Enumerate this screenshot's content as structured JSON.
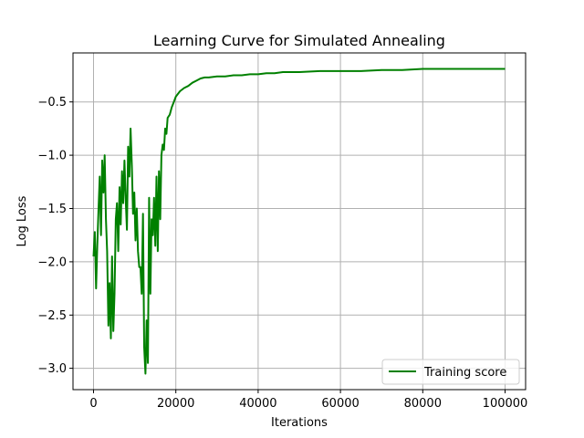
{
  "chart_data": {
    "type": "line",
    "title": "Learning Curve for Simulated Annealing",
    "xlabel": "Iterations",
    "ylabel": "Log Loss",
    "xlim": [
      -5000,
      105000
    ],
    "ylim": [
      -3.2,
      -0.04
    ],
    "grid": true,
    "legend_position": "lower right",
    "xticks": [
      0,
      20000,
      40000,
      60000,
      80000,
      100000
    ],
    "xtick_labels": [
      "0",
      "20000",
      "40000",
      "60000",
      "80000",
      "100000"
    ],
    "yticks": [
      -3.0,
      -2.5,
      -2.0,
      -1.5,
      -1.0,
      -0.5
    ],
    "ytick_labels": [
      "−3.0",
      "−2.5",
      "−2.0",
      "−1.5",
      "−1.0",
      "−0.5"
    ],
    "series": [
      {
        "name": "Training score",
        "color": "#008000",
        "x": [
          0,
          300,
          600,
          900,
          1200,
          1500,
          1800,
          2100,
          2400,
          2700,
          3000,
          3300,
          3600,
          3900,
          4200,
          4500,
          4800,
          5100,
          5400,
          5700,
          6000,
          6300,
          6600,
          6900,
          7200,
          7500,
          7800,
          8100,
          8400,
          8700,
          9000,
          9300,
          9600,
          9900,
          10200,
          10500,
          10800,
          11100,
          11400,
          11700,
          12000,
          12300,
          12600,
          12900,
          13200,
          13500,
          13800,
          14100,
          14400,
          14700,
          15000,
          15300,
          15600,
          15900,
          16200,
          16500,
          16800,
          17100,
          17400,
          17700,
          18000,
          18500,
          19000,
          19500,
          20000,
          21000,
          22000,
          23000,
          24000,
          25000,
          26000,
          27000,
          28000,
          30000,
          32000,
          34000,
          36000,
          38000,
          40000,
          42000,
          44000,
          46000,
          48000,
          50000,
          55000,
          60000,
          65000,
          70000,
          75000,
          80000,
          85000,
          90000,
          95000,
          100000
        ],
        "values": [
          -1.95,
          -1.72,
          -2.25,
          -1.85,
          -1.5,
          -1.2,
          -1.75,
          -1.05,
          -1.35,
          -1.0,
          -1.6,
          -1.9,
          -2.6,
          -2.2,
          -2.72,
          -1.95,
          -2.65,
          -2.3,
          -1.6,
          -1.45,
          -1.9,
          -1.3,
          -1.65,
          -1.15,
          -1.45,
          -1.05,
          -1.4,
          -1.7,
          -0.92,
          -1.2,
          -0.75,
          -1.1,
          -1.55,
          -1.35,
          -1.8,
          -1.5,
          -1.9,
          -2.05,
          -2.05,
          -2.3,
          -1.55,
          -2.8,
          -3.05,
          -2.55,
          -2.95,
          -1.4,
          -2.3,
          -1.6,
          -1.75,
          -1.4,
          -1.85,
          -1.2,
          -1.9,
          -1.15,
          -1.6,
          -1.0,
          -0.9,
          -0.95,
          -0.75,
          -0.8,
          -0.65,
          -0.62,
          -0.55,
          -0.5,
          -0.45,
          -0.4,
          -0.37,
          -0.35,
          -0.32,
          -0.3,
          -0.28,
          -0.27,
          -0.27,
          -0.26,
          -0.26,
          -0.25,
          -0.25,
          -0.24,
          -0.24,
          -0.23,
          -0.23,
          -0.22,
          -0.22,
          -0.22,
          -0.21,
          -0.21,
          -0.21,
          -0.2,
          -0.2,
          -0.19,
          -0.19,
          -0.19,
          -0.19,
          -0.19
        ]
      }
    ]
  }
}
